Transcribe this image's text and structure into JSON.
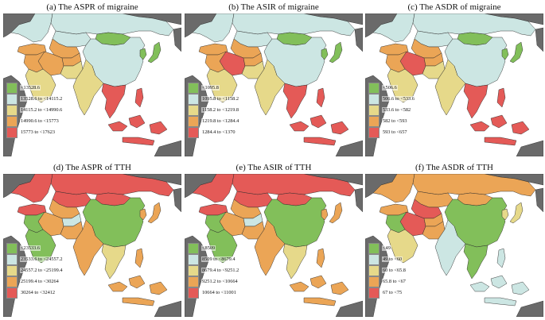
{
  "palette": [
    "#82bf5a",
    "#cce6e3",
    "#e6d98a",
    "#eba556",
    "#e45a57"
  ],
  "context_color": "#6a6a6a",
  "panels": [
    {
      "title": "(a) The ASPR of migraine",
      "legend": [
        "<13528.6",
        "13528.6 to <14115.2",
        "14115.2 to <14990.6",
        "14990.6 to <15773",
        "15773 to <17623"
      ],
      "colors": {
        "eu": 1,
        "ru": 1,
        "kz": 1,
        "cn": 1,
        "mn": 0,
        "jp": 0,
        "kr": 0,
        "ir": 3,
        "tr": 3,
        "ar": 2,
        "in": 2,
        "sea": 4,
        "phl": 4,
        "ido": 4,
        "ca": 3,
        "af": 3,
        "pk": 2,
        "mid": 3
      }
    },
    {
      "title": "(b) The ASIR of migraine",
      "legend": [
        "<1095.8",
        "1095.8 to <1158.2",
        "1158.2 to <1219.8",
        "1219.8 to <1284.4",
        "1284.4 to <1370"
      ],
      "colors": {
        "eu": 1,
        "ru": 1,
        "kz": 1,
        "cn": 1,
        "mn": 0,
        "jp": 0,
        "kr": 0,
        "ir": 4,
        "tr": 3,
        "ar": 2,
        "in": 2,
        "sea": 4,
        "phl": 4,
        "ido": 4,
        "ca": 3,
        "af": 3,
        "pk": 2,
        "mid": 3
      }
    },
    {
      "title": "(c) The ASDR of migraine",
      "legend": [
        "<506.6",
        "506.6 to <533.6",
        "533.6 to <582",
        "582 to <593",
        "593 to <657"
      ],
      "colors": {
        "eu": 1,
        "ru": 1,
        "kz": 1,
        "cn": 1,
        "mn": 0,
        "jp": 0,
        "kr": 0,
        "ir": 4,
        "tr": 3,
        "ar": 2,
        "in": 2,
        "sea": 4,
        "phl": 4,
        "ido": 4,
        "ca": 3,
        "af": 3,
        "pk": 2,
        "mid": 3
      }
    },
    {
      "title": "(d) The ASPR of TTH",
      "legend": [
        "<23533.6",
        "23533.6 to <24557.2",
        "24557.2 to <25199.4",
        "25199.4 to <30264",
        "30264 to <32412"
      ],
      "colors": {
        "eu": 4,
        "ru": 4,
        "kz": 4,
        "cn": 0,
        "mn": 4,
        "jp": 3,
        "kr": 3,
        "ir": 3,
        "tr": 4,
        "ar": 0,
        "in": 3,
        "sea": 2,
        "phl": 3,
        "ido": 3,
        "ca": 3,
        "af": 1,
        "pk": 3,
        "mid": 0
      }
    },
    {
      "title": "(e) The ASIR of TTH",
      "legend": [
        "<8509",
        "8509 to <8679.4",
        "8679.4 to <9251.2",
        "9251.2 to <10664",
        "10664 to <11001"
      ],
      "colors": {
        "eu": 4,
        "ru": 4,
        "kz": 4,
        "cn": 0,
        "mn": 4,
        "jp": 3,
        "kr": 3,
        "ir": 3,
        "tr": 4,
        "ar": 0,
        "in": 3,
        "sea": 2,
        "phl": 3,
        "ido": 3,
        "ca": 3,
        "af": 1,
        "pk": 3,
        "mid": 0
      }
    },
    {
      "title": "(f) The ASDR of TTH",
      "legend": [
        "<49",
        "49 to <60",
        "60 to <65.8",
        "65.8 to <67",
        "67 to <75"
      ],
      "colors": {
        "eu": 3,
        "ru": 3,
        "kz": 3,
        "cn": 0,
        "mn": 3,
        "jp": 2,
        "kr": 2,
        "ir": 4,
        "tr": 3,
        "ar": 2,
        "in": 1,
        "sea": 0,
        "phl": 1,
        "ido": 1,
        "ca": 4,
        "af": 3,
        "pk": 3,
        "mid": 0
      }
    }
  ]
}
